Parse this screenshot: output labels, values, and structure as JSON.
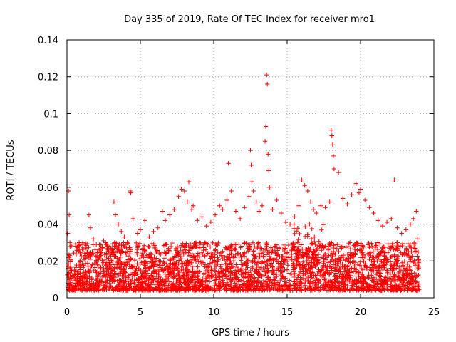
{
  "chart_data": {
    "type": "scatter",
    "title": "Day 335 of 2019, Rate Of TEC Index for receiver mro1",
    "xlabel": "GPS time / hours",
    "ylabel": "ROTI / TECUs",
    "xlim": [
      0,
      25
    ],
    "ylim": [
      0,
      0.14
    ],
    "xticks": [
      0,
      5,
      10,
      15,
      20,
      25
    ],
    "yticks": [
      0,
      0.02,
      0.04,
      0.06,
      0.08,
      0.1,
      0.12,
      0.14
    ],
    "xtick_labels": [
      "0",
      "5",
      "10",
      "15",
      "20",
      "25"
    ],
    "ytick_labels": [
      "0",
      "0.02",
      "0.04",
      "0.06",
      "0.08",
      "0.1",
      "0.12",
      "0.14"
    ],
    "grid": true,
    "marker": "+",
    "color": "#ff0000",
    "series": [
      {
        "name": "ROTI",
        "x": [
          0.05,
          0.1,
          0.15,
          0.2,
          0.25,
          0.3,
          0.6,
          0.9,
          1.3,
          1.5,
          1.6,
          1.8,
          2.0,
          2.2,
          2.5,
          2.8,
          3.0,
          3.2,
          3.3,
          3.5,
          3.7,
          3.9,
          4.1,
          4.3,
          4.35,
          4.5,
          4.8,
          5.0,
          5.3,
          5.6,
          5.9,
          6.2,
          6.5,
          6.7,
          7.0,
          7.3,
          7.6,
          7.8,
          8.0,
          8.2,
          8.3,
          8.5,
          8.6,
          8.9,
          9.2,
          9.5,
          9.8,
          10.1,
          10.4,
          10.6,
          10.9,
          11.0,
          11.2,
          11.5,
          11.8,
          12.1,
          12.4,
          12.5,
          12.55,
          12.6,
          12.7,
          12.9,
          13.1,
          13.3,
          13.5,
          13.55,
          13.6,
          13.65,
          13.7,
          13.75,
          13.8,
          14.0,
          14.3,
          14.6,
          14.9,
          15.2,
          15.5,
          15.8,
          16.0,
          16.2,
          16.4,
          16.6,
          16.8,
          17.0,
          17.3,
          17.6,
          17.9,
          18.0,
          18.05,
          18.1,
          18.15,
          18.2,
          18.5,
          18.8,
          19.1,
          19.4,
          19.7,
          19.9,
          20.0,
          20.3,
          20.6,
          20.9,
          21.2,
          21.5,
          21.8,
          22.1,
          22.3,
          22.5,
          22.8,
          23.1,
          23.4,
          23.6,
          23.8,
          23.9
        ],
        "y": [
          0.035,
          0.058,
          0.045,
          0.03,
          0.02,
          0.015,
          0.028,
          0.024,
          0.027,
          0.045,
          0.038,
          0.032,
          0.029,
          0.026,
          0.031,
          0.028,
          0.027,
          0.052,
          0.045,
          0.04,
          0.036,
          0.033,
          0.03,
          0.058,
          0.057,
          0.043,
          0.035,
          0.037,
          0.042,
          0.033,
          0.036,
          0.038,
          0.047,
          0.042,
          0.045,
          0.048,
          0.055,
          0.059,
          0.058,
          0.052,
          0.063,
          0.048,
          0.05,
          0.042,
          0.044,
          0.039,
          0.041,
          0.045,
          0.05,
          0.048,
          0.053,
          0.073,
          0.058,
          0.047,
          0.043,
          0.049,
          0.055,
          0.08,
          0.072,
          0.063,
          0.058,
          0.052,
          0.047,
          0.05,
          0.085,
          0.093,
          0.121,
          0.116,
          0.078,
          0.069,
          0.06,
          0.048,
          0.053,
          0.046,
          0.041,
          0.04,
          0.044,
          0.05,
          0.064,
          0.061,
          0.058,
          0.052,
          0.048,
          0.046,
          0.05,
          0.049,
          0.052,
          0.091,
          0.088,
          0.083,
          0.077,
          0.07,
          0.068,
          0.054,
          0.051,
          0.056,
          0.062,
          0.057,
          0.059,
          0.053,
          0.049,
          0.046,
          0.042,
          0.039,
          0.041,
          0.043,
          0.064,
          0.038,
          0.035,
          0.037,
          0.04,
          0.043,
          0.047,
          0.032
        ]
      }
    ],
    "background_band": {
      "description": "dense cloud of low ROTI samples across the full day",
      "x_range": [
        0,
        24
      ],
      "typical_y_range": [
        0.004,
        0.03
      ]
    }
  }
}
